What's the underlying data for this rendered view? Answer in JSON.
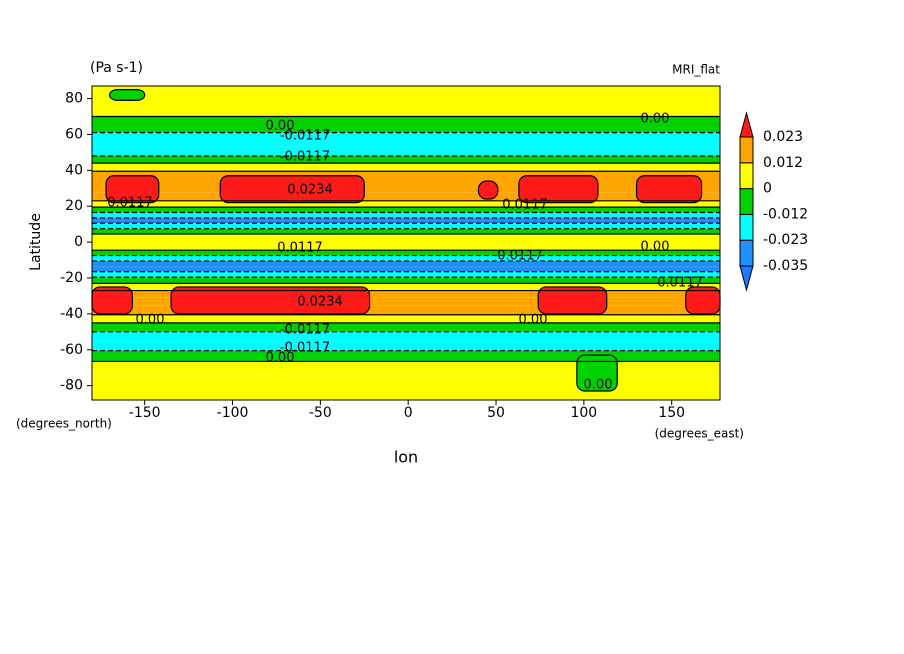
{
  "chart_data": {
    "type": "contour",
    "title": "(Pa s-1)",
    "subtitle": "MRI_flat",
    "x_label": "lon",
    "y_label": "Latitude",
    "x_units": "(degrees_east)",
    "y_units": "(degrees_north)",
    "xlim": [
      -180,
      177.5
    ],
    "ylim": [
      -88,
      87
    ],
    "xticks": [
      -150,
      -100,
      -50,
      0,
      50,
      100,
      150
    ],
    "yticks": [
      -80,
      -60,
      -40,
      -20,
      0,
      20,
      40,
      60,
      80
    ],
    "levels": [
      -0.035,
      -0.023,
      -0.012,
      0,
      0.012,
      0.023
    ],
    "colors": [
      "#1e78ff",
      "#1e90ff",
      "#00ffff",
      "#00d200",
      "#ffff00",
      "#ffa500",
      "#ff1a1a"
    ],
    "latitudes": [
      85,
      75,
      65,
      57,
      50,
      46,
      42,
      37,
      30,
      25,
      21,
      18,
      15,
      12,
      9,
      6,
      3,
      0,
      -3,
      -6,
      -9,
      -12,
      -15,
      -18,
      -21,
      -25,
      -29,
      -33,
      -38,
      -43,
      -47,
      -53,
      -58,
      -63,
      -70,
      -80,
      -87
    ],
    "zonal_values": [
      0.004,
      0.003,
      -0.004,
      -0.015,
      -0.014,
      -0.005,
      0.006,
      0.015,
      0.019,
      0.016,
      0.005,
      -0.01,
      -0.02,
      -0.03,
      -0.02,
      -0.008,
      0.004,
      0.006,
      0.003,
      -0.008,
      -0.02,
      -0.03,
      -0.03,
      -0.02,
      -0.005,
      0.008,
      0.016,
      0.019,
      0.016,
      0.005,
      -0.005,
      -0.015,
      -0.015,
      -0.004,
      0.004,
      0.005,
      0.004
    ],
    "patches": [
      {
        "x": [
          -172,
          -142
        ],
        "y": [
          22,
          37
        ],
        "value": 0.026
      },
      {
        "x": [
          -107,
          -25
        ],
        "y": [
          22,
          37
        ],
        "value": 0.026
      },
      {
        "x": [
          40,
          51
        ],
        "y": [
          24,
          34
        ],
        "value": 0.026
      },
      {
        "x": [
          63,
          108
        ],
        "y": [
          22,
          37
        ],
        "value": 0.026
      },
      {
        "x": [
          130,
          167
        ],
        "y": [
          22,
          37
        ],
        "value": 0.026
      },
      {
        "x": [
          -180,
          -157
        ],
        "y": [
          -40,
          -25
        ],
        "value": 0.026
      },
      {
        "x": [
          -135,
          -22
        ],
        "y": [
          -40,
          -25
        ],
        "value": 0.026
      },
      {
        "x": [
          74,
          113
        ],
        "y": [
          -40,
          -25
        ],
        "value": 0.026
      },
      {
        "x": [
          158,
          177.5
        ],
        "y": [
          -40,
          -25
        ],
        "value": 0.026
      },
      {
        "x": [
          -170,
          -150
        ],
        "y": [
          79,
          85
        ],
        "value": -0.004
      },
      {
        "x": [
          96,
          119
        ],
        "y": [
          -83,
          -63
        ],
        "value": -0.004
      }
    ],
    "contour_labels": [
      "0.00",
      "-0.0117",
      "-0.0117",
      "0.00",
      "0.0234",
      "0.0117",
      "0.0117",
      "0.0117",
      "0.00",
      "0.0117",
      "0.0234",
      "0.00",
      "0.00",
      "-0.0117",
      "-0.0117",
      "0.00",
      "0.00",
      "0.0117"
    ]
  }
}
